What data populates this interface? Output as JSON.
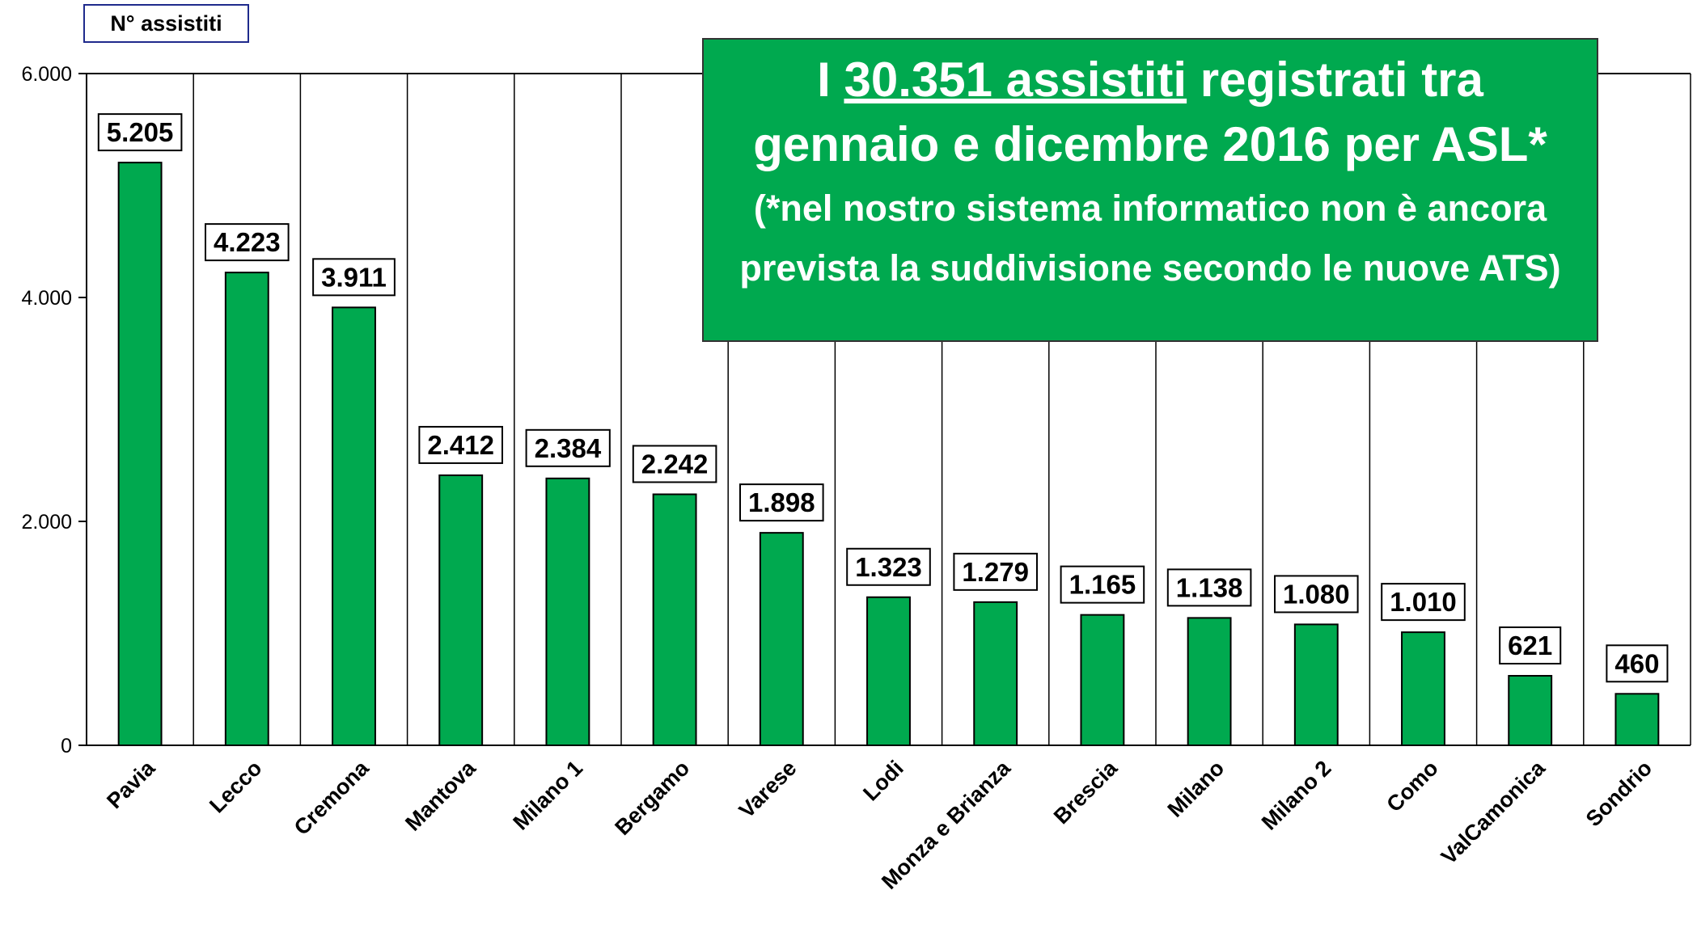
{
  "chart_data": {
    "type": "bar",
    "y_label": "N° assistiti",
    "annotation": {
      "p1": "I ",
      "p2": "30.351 assistiti",
      "p3": " registrati tra gennaio e dicembre 2016 per ASL*",
      "p4": " (*nel nostro sistema informatico non è ancora prevista la suddivisione secondo le nuove ATS)"
    },
    "categories": [
      "Pavia",
      "Lecco",
      "Cremona",
      "Mantova",
      "Milano 1",
      "Bergamo",
      "Varese",
      "Lodi",
      "Monza e Brianza",
      "Brescia",
      "Milano",
      "Milano 2",
      "Como",
      "ValCamonica",
      "Sondrio"
    ],
    "values": [
      5205,
      4223,
      3911,
      2412,
      2384,
      2242,
      1898,
      1323,
      1279,
      1165,
      1138,
      1080,
      1010,
      621,
      460
    ],
    "value_labels": [
      "5.205",
      "4.223",
      "3.911",
      "2.412",
      "2.384",
      "2.242",
      "1.898",
      "1.323",
      "1.279",
      "1.165",
      "1.138",
      "1.080",
      "1.010",
      "621",
      "460"
    ],
    "color": "#00a94f",
    "ylim": [
      0,
      6000
    ],
    "yticks": [
      0,
      {
        "value": 2000,
        "label": "2.000"
      },
      {
        "value": 4000,
        "label": "4.000"
      },
      {
        "value": 6000,
        "label": "6.000"
      }
    ]
  }
}
